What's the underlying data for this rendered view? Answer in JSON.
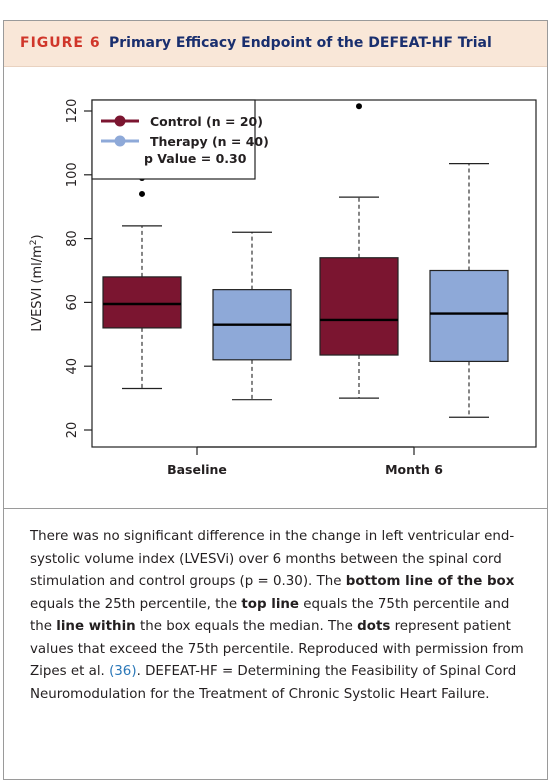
{
  "figure": {
    "number_label": "FIGURE 6",
    "title": "Primary Efficacy Endpoint of the DEFEAT-HF Trial"
  },
  "colors": {
    "control": "#7b1530",
    "therapy": "#8ea9d8",
    "header_bg": "#f9e7d8",
    "figure_label": "#d0362a",
    "title": "#1a2f6e",
    "link": "#2a77b8"
  },
  "chart_data": {
    "type": "boxplot",
    "ylabel": "LVESVI (ml/m²)",
    "ylabel_main": "LVESVI (ml/m",
    "ylabel_sup": "2",
    "ylabel_end": ")",
    "ylim": [
      20,
      122
    ],
    "yticks": [
      20,
      40,
      60,
      80,
      100,
      120
    ],
    "categories": [
      "Baseline",
      "Month 6"
    ],
    "legend": {
      "placement": "top-left",
      "entries": [
        "Control (n = 20)",
        "Therapy (n = 40)"
      ],
      "note": "p Value = 0.30"
    },
    "series": [
      {
        "name": "Control (n = 20)",
        "color": "#7b1530",
        "boxes": [
          {
            "category": "Baseline",
            "min": 33,
            "q1": 52,
            "median": 59.5,
            "q3": 68,
            "max": 84,
            "outliers": [
              94,
              99
            ]
          },
          {
            "category": "Month 6",
            "min": 30,
            "q1": 43.5,
            "median": 54.5,
            "q3": 74,
            "max": 93,
            "outliers": [
              121.5
            ]
          }
        ]
      },
      {
        "name": "Therapy (n = 40)",
        "color": "#8ea9d8",
        "boxes": [
          {
            "category": "Baseline",
            "min": 29.5,
            "q1": 42,
            "median": 53,
            "q3": 64,
            "max": 82,
            "outliers": []
          },
          {
            "category": "Month 6",
            "min": 24,
            "q1": 41.5,
            "median": 56.5,
            "q3": 70,
            "max": 103.5,
            "outliers": []
          }
        ]
      }
    ]
  },
  "caption": {
    "s1": "There was no significant difference in the change in left ventricular end-systolic volume index (LVESVi) over 6 months between the spinal cord stimulation and control groups (p = 0.30). The ",
    "b1": "bottom line of the box",
    "s2": " equals the 25th percentile, the ",
    "b2": "top line",
    "s3": " equals the 75th percentile and the ",
    "b3": "line within",
    "s4": " the box equals the median. The ",
    "b4": "dots",
    "s5": " represent patient values that exceed the 75th percentile. Reproduced with permission from Zipes et al. ",
    "ref": "(36)",
    "s6": ". DEFEAT-HF = Determining the Feasibility of Spinal Cord Neuromodulation for the Treatment of Chronic Systolic Heart Failure."
  }
}
